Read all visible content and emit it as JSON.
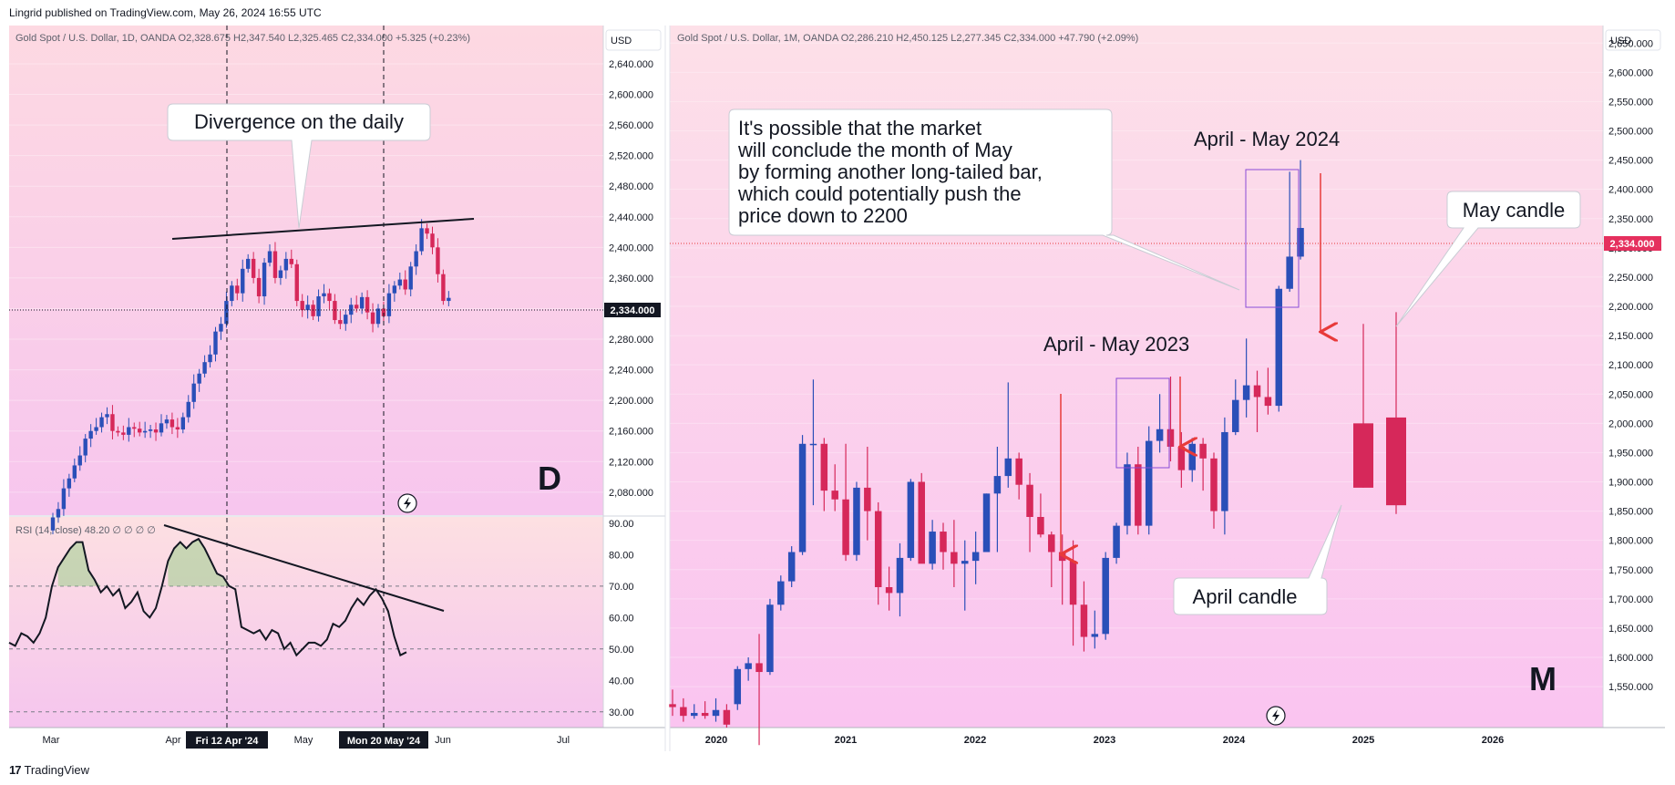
{
  "header": {
    "text": "Lingrid published on TradingView.com, May 26, 2024 16:55 UTC"
  },
  "footer": {
    "logo": "17",
    "brand": "TradingView"
  },
  "colors": {
    "up": "#2a4fb8",
    "down": "#d6285a",
    "bg_top": "#fde0e8",
    "bg_bottom": "#f9c6ea",
    "arrow": "#e83a3a",
    "box": "#8a4bd6"
  },
  "left_panel": {
    "legend": "Gold Spot / U.S. Dollar, 1D, OANDA  O2,328.675  H2,347.540  L2,325.465  C2,334.000  +5.325 (+0.23%)",
    "currency": "USD",
    "price_tag": "2,334.000",
    "timeframe_letter": "D",
    "divergence_callout": "Divergence on the daily",
    "x_marker_1": "Fri 12 Apr '24",
    "x_marker_2": "Mon 20 May '24",
    "rsi_legend": "RSI (14, close)  48.20  ∅  ∅  ∅  ∅",
    "lightning_icon": "lightning-icon"
  },
  "right_panel": {
    "legend": "Gold Spot / U.S. Dollar, 1M, OANDA  O2,286.210  H2,450.125  L2,277.345  C2,334.000  +47.790 (+2.09%)",
    "currency": "USD",
    "price_tag": "2,334.000",
    "timeframe_letter": "M",
    "callout_lines": [
      "It's possible that the market",
      "will conclude the month of May",
      "by forming another long-tailed bar,",
      "which could potentially push the",
      "price down to 2200"
    ],
    "label_2024": "April - May 2024",
    "label_2023": "April - May 2023",
    "may_candle_label": "May candle",
    "april_candle_label": "April candle",
    "lightning_icon": "lightning-icon"
  },
  "chart_data": [
    {
      "type": "candlestick",
      "title": "Gold Spot / U.S. Dollar, 1D, OANDA",
      "ylim": [
        2050,
        2690
      ],
      "y_ticks": [
        "2,640.000",
        "2,600.000",
        "2,560.000",
        "2,520.000",
        "2,480.000",
        "2,440.000",
        "2,400.000",
        "2,360.000",
        "2,320.000",
        "2,280.000",
        "2,240.000",
        "2,200.000",
        "2,160.000",
        "2,120.000",
        "2,080.000"
      ],
      "x_ticks": [
        "Mar",
        "Apr",
        "May",
        "Jun",
        "Jul"
      ],
      "close_series": [
        2047,
        2058,
        2085,
        2098,
        2115,
        2128,
        2150,
        2160,
        2165,
        2178,
        2182,
        2160,
        2158,
        2155,
        2165,
        2163,
        2158,
        2160,
        2162,
        2158,
        2170,
        2175,
        2165,
        2162,
        2178,
        2198,
        2222,
        2235,
        2250,
        2260,
        2290,
        2300,
        2330,
        2350,
        2340,
        2372,
        2385,
        2360,
        2336,
        2380,
        2395,
        2360,
        2370,
        2385,
        2378,
        2330,
        2318,
        2325,
        2310,
        2336,
        2340,
        2330,
        2305,
        2300,
        2312,
        2325,
        2320,
        2335,
        2315,
        2300,
        2320,
        2310,
        2340,
        2350,
        2358,
        2345,
        2375,
        2395,
        2425,
        2418,
        2400,
        2365,
        2330,
        2334
      ],
      "trendline": [
        [
          2436,
          "Apr"
        ],
        [
          2462,
          "Jun"
        ]
      ]
    },
    {
      "type": "line",
      "title": "RSI (14, close)",
      "ylim": [
        25,
        92
      ],
      "y_ticks": [
        "90.00",
        "80.00",
        "70.00",
        "60.00",
        "50.00",
        "40.00",
        "30.00"
      ],
      "bands": [
        70,
        50,
        30
      ],
      "last_value": 48.2,
      "values": [
        52,
        51,
        55,
        54,
        52,
        55,
        60,
        70,
        76,
        79,
        82,
        84,
        84,
        75,
        72,
        68,
        70,
        67,
        69,
        63,
        65,
        68,
        62,
        60,
        63,
        70,
        78,
        82,
        84,
        82,
        84,
        85,
        82,
        78,
        74,
        73,
        70,
        69,
        57,
        56,
        55,
        56,
        53,
        56,
        55,
        50,
        52,
        48,
        50,
        52,
        52,
        51,
        53,
        58,
        57,
        59,
        63,
        66,
        64,
        67,
        69,
        66,
        62,
        54,
        48,
        49
      ]
    },
    {
      "type": "candlestick",
      "title": "Gold Spot / U.S. Dollar, 1M, OANDA",
      "ylim": [
        1480,
        2680
      ],
      "y_ticks": [
        "2,650.000",
        "2,600.000",
        "2,550.000",
        "2,500.000",
        "2,450.000",
        "2,400.000",
        "2,350.000",
        "2,300.000",
        "2,250.000",
        "2,200.000",
        "2,150.000",
        "2,100.000",
        "2,050.000",
        "2,000.000",
        "1,950.000",
        "1,900.000",
        "1,850.000",
        "1,800.000",
        "1,750.000",
        "1,700.000",
        "1,650.000",
        "1,600.000",
        "1,550.000"
      ],
      "x_ticks": [
        "2020",
        "2021",
        "2022",
        "2023",
        "2024",
        "2025",
        "2026"
      ],
      "ohlc": [
        [
          1520,
          1545,
          1500,
          1515
        ],
        [
          1515,
          1530,
          1490,
          1500
        ],
        [
          1500,
          1520,
          1495,
          1505
        ],
        [
          1505,
          1525,
          1495,
          1500
        ],
        [
          1500,
          1530,
          1490,
          1510
        ],
        [
          1510,
          1520,
          1480,
          1485
        ],
        [
          1520,
          1585,
          1510,
          1580
        ],
        [
          1580,
          1600,
          1560,
          1590
        ],
        [
          1590,
          1640,
          1450,
          1575
        ],
        [
          1575,
          1700,
          1570,
          1690
        ],
        [
          1690,
          1740,
          1680,
          1730
        ],
        [
          1730,
          1790,
          1720,
          1780
        ],
        [
          1780,
          1980,
          1775,
          1965
        ],
        [
          1965,
          2075,
          1860,
          1965
        ],
        [
          1965,
          1975,
          1850,
          1885
        ],
        [
          1885,
          1930,
          1850,
          1870
        ],
        [
          1870,
          1965,
          1765,
          1775
        ],
        [
          1775,
          1900,
          1765,
          1890
        ],
        [
          1890,
          1960,
          1800,
          1850
        ],
        [
          1850,
          1865,
          1690,
          1720
        ],
        [
          1720,
          1755,
          1680,
          1710
        ],
        [
          1710,
          1795,
          1670,
          1770
        ],
        [
          1770,
          1905,
          1765,
          1900
        ],
        [
          1900,
          1915,
          1765,
          1760
        ],
        [
          1760,
          1835,
          1750,
          1815
        ],
        [
          1815,
          1830,
          1750,
          1780
        ],
        [
          1780,
          1835,
          1720,
          1760
        ],
        [
          1760,
          1800,
          1680,
          1765
        ],
        [
          1765,
          1815,
          1725,
          1780
        ],
        [
          1780,
          1880,
          1780,
          1880
        ],
        [
          1880,
          1960,
          1780,
          1910
        ],
        [
          1910,
          2070,
          1890,
          1940
        ],
        [
          1940,
          1950,
          1870,
          1895
        ],
        [
          1895,
          1915,
          1780,
          1840
        ],
        [
          1840,
          1880,
          1805,
          1810
        ],
        [
          1810,
          1815,
          1720,
          1780
        ],
        [
          1780,
          1810,
          1690,
          1765
        ],
        [
          1765,
          1800,
          1620,
          1690
        ],
        [
          1690,
          1730,
          1610,
          1635
        ],
        [
          1635,
          1680,
          1615,
          1640
        ],
        [
          1640,
          1780,
          1630,
          1770
        ],
        [
          1770,
          1830,
          1760,
          1825
        ],
        [
          1825,
          1950,
          1810,
          1930
        ],
        [
          1930,
          1960,
          1810,
          1825
        ],
        [
          1825,
          1995,
          1810,
          1970
        ],
        [
          1970,
          2050,
          1950,
          1990
        ],
        [
          1990,
          2080,
          1935,
          1960
        ],
        [
          1960,
          1985,
          1890,
          1920
        ],
        [
          1920,
          1975,
          1900,
          1965
        ],
        [
          1965,
          1975,
          1885,
          1940
        ],
        [
          1940,
          1950,
          1820,
          1850
        ],
        [
          1850,
          2010,
          1810,
          1985
        ],
        [
          1985,
          2075,
          1980,
          2040
        ],
        [
          2040,
          2145,
          2010,
          2065
        ],
        [
          2065,
          2090,
          1985,
          2045
        ],
        [
          2045,
          2095,
          2015,
          2030
        ],
        [
          2030,
          2235,
          2020,
          2230
        ],
        [
          2230,
          2430,
          2225,
          2285
        ],
        [
          2285,
          2450,
          2280,
          2334
        ],
        [
          2000,
          2170,
          1890,
          1890
        ],
        [
          2010,
          2190,
          1845,
          1860
        ]
      ],
      "horizontal_price_line": 2334
    }
  ]
}
